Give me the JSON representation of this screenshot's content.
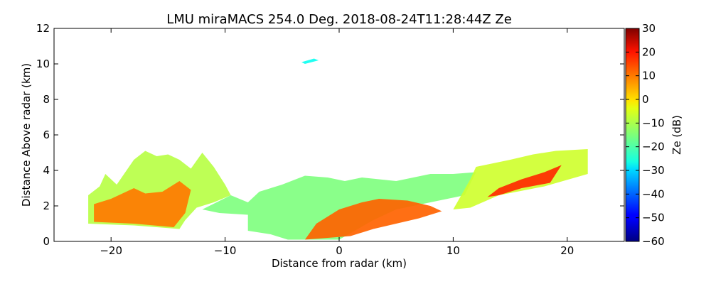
{
  "chart_data": {
    "type": "heatmap",
    "title": "LMU miraMACS 254.0 Deg. 2018-08-24T11:28:44Z  Ze",
    "xlabel": "Distance from radar (km)",
    "ylabel": "Distance Above radar  (km)",
    "xlim": [
      -25,
      25
    ],
    "ylim": [
      0,
      12
    ],
    "xticks": [
      -20,
      -10,
      0,
      10,
      20
    ],
    "yticks": [
      0,
      2,
      4,
      6,
      8,
      10,
      12
    ],
    "xtick_labels": [
      "−20",
      "−10",
      "0",
      "10",
      "20"
    ],
    "ytick_labels": [
      "0",
      "2",
      "4",
      "6",
      "8",
      "10",
      "12"
    ],
    "colorbar": {
      "label": "Ze (dB)",
      "range": [
        -60,
        30
      ],
      "ticks": [
        -60,
        -50,
        -40,
        -30,
        -20,
        -10,
        0,
        10,
        20,
        30
      ],
      "tick_labels": [
        "−60",
        "−50",
        "−40",
        "−30",
        "−20",
        "−10",
        "0",
        "10",
        "20",
        "30"
      ],
      "colormap": "jet"
    },
    "scan_azimuth_deg": 254.0,
    "timestamp": "2018-08-24T11:28:44Z",
    "echo_regions": [
      {
        "name": "left-cloud-block",
        "outline_km": [
          [
            -22,
            1
          ],
          [
            -22,
            2.6
          ],
          [
            -21,
            3.1
          ],
          [
            -20.5,
            3.8
          ],
          [
            -19.5,
            3.2
          ],
          [
            -18,
            4.6
          ],
          [
            -17,
            5.1
          ],
          [
            -16,
            4.8
          ],
          [
            -15,
            4.9
          ],
          [
            -14,
            4.6
          ],
          [
            -13,
            4.1
          ],
          [
            -12,
            5.0
          ],
          [
            -11,
            4.2
          ],
          [
            -10,
            3.2
          ],
          [
            -9.5,
            2.6
          ],
          [
            -11,
            2.2
          ],
          [
            -12.5,
            1.9
          ],
          [
            -13.5,
            1.2
          ],
          [
            -14,
            0.7
          ],
          [
            -18,
            0.9
          ]
        ],
        "ze_db": -10
      },
      {
        "name": "left-core",
        "outline_km": [
          [
            -21.5,
            1.1
          ],
          [
            -21.5,
            2.1
          ],
          [
            -20,
            2.4
          ],
          [
            -18,
            3.0
          ],
          [
            -17,
            2.7
          ],
          [
            -15.5,
            2.8
          ],
          [
            -14,
            3.4
          ],
          [
            -13,
            2.9
          ],
          [
            -13.5,
            1.6
          ],
          [
            -14.5,
            0.8
          ],
          [
            -18,
            1.0
          ]
        ],
        "ze_db": 8
      },
      {
        "name": "central-layer",
        "outline_km": [
          [
            -9.5,
            2.6
          ],
          [
            -8,
            2.2
          ],
          [
            -7,
            2.8
          ],
          [
            -5,
            3.2
          ],
          [
            -3,
            3.7
          ],
          [
            -1,
            3.6
          ],
          [
            0.5,
            3.4
          ],
          [
            2,
            3.6
          ],
          [
            5,
            3.4
          ],
          [
            8,
            3.8
          ],
          [
            10,
            3.8
          ],
          [
            12,
            3.9
          ],
          [
            11,
            2.6
          ],
          [
            8,
            2.2
          ],
          [
            5,
            1.8
          ],
          [
            3,
            1.2
          ],
          [
            0,
            0.1
          ],
          [
            -4.5,
            0.1
          ],
          [
            -6,
            0.4
          ],
          [
            -8,
            0.6
          ],
          [
            -8,
            1.5
          ],
          [
            -10.5,
            1.6
          ],
          [
            -12,
            1.8
          ]
        ],
        "ze_db": -15
      },
      {
        "name": "surface-core",
        "outline_km": [
          [
            -3,
            0.1
          ],
          [
            -2,
            1.0
          ],
          [
            0,
            1.8
          ],
          [
            2,
            2.2
          ],
          [
            3.5,
            2.4
          ],
          [
            6,
            2.3
          ],
          [
            8,
            2.0
          ],
          [
            9,
            1.7
          ],
          [
            7,
            1.3
          ],
          [
            5,
            1.0
          ],
          [
            3,
            0.7
          ],
          [
            1,
            0.3
          ]
        ],
        "ze_db": 10
      },
      {
        "name": "right-layer",
        "outline_km": [
          [
            10,
            1.8
          ],
          [
            11.5,
            3.5
          ],
          [
            12,
            4.2
          ],
          [
            15,
            4.6
          ],
          [
            17,
            4.9
          ],
          [
            19,
            5.1
          ],
          [
            21.8,
            5.2
          ],
          [
            21.8,
            3.8
          ],
          [
            18,
            3.1
          ],
          [
            14,
            2.6
          ],
          [
            11.5,
            1.9
          ]
        ],
        "ze_db": -8
      },
      {
        "name": "right-core",
        "outline_km": [
          [
            13,
            2.5
          ],
          [
            14,
            3.0
          ],
          [
            16,
            3.5
          ],
          [
            18,
            3.9
          ],
          [
            19.5,
            4.3
          ],
          [
            18.5,
            3.3
          ],
          [
            16,
            3.0
          ],
          [
            14,
            2.6
          ]
        ],
        "ze_db": 15
      },
      {
        "name": "upper-speck",
        "outline_km": [
          [
            -3.3,
            10.1
          ],
          [
            -2.2,
            10.3
          ],
          [
            -1.8,
            10.2
          ],
          [
            -3.0,
            10.0
          ]
        ],
        "ze_db": -25
      }
    ]
  }
}
